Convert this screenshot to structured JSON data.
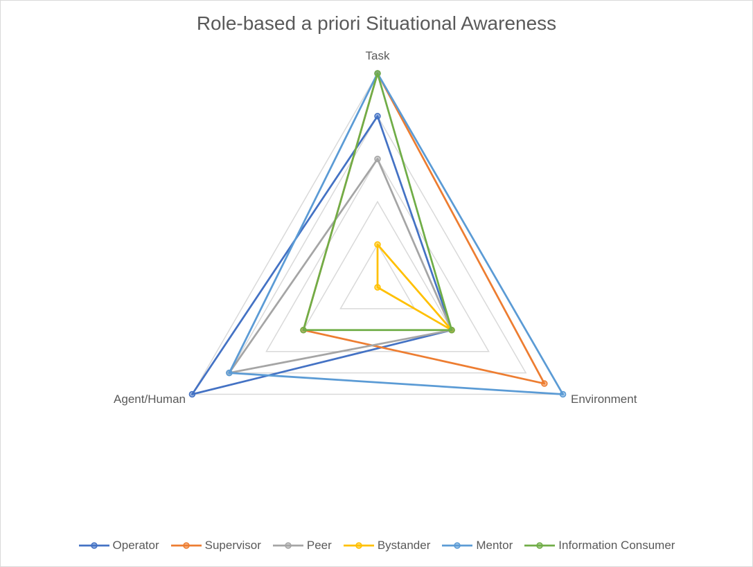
{
  "chart_data": {
    "type": "radar",
    "title": "Role-based a priori Situational Awareness",
    "axes": [
      "Task",
      "Environment",
      "Agent/Human"
    ],
    "rmax": 5,
    "gridlines": [
      1,
      2,
      3,
      4,
      5
    ],
    "grid": true,
    "legend_position": "bottom",
    "series": [
      {
        "name": "Operator",
        "color": "#4472c4",
        "values": [
          4,
          2,
          5
        ]
      },
      {
        "name": "Supervisor",
        "color": "#ed7d31",
        "values": [
          5,
          4.5,
          2
        ]
      },
      {
        "name": "Peer",
        "color": "#a5a5a5",
        "values": [
          3,
          2,
          4
        ]
      },
      {
        "name": "Bystander",
        "color": "#ffc000",
        "values": [
          1,
          2,
          0
        ]
      },
      {
        "name": "Mentor",
        "color": "#5b9bd5",
        "values": [
          5,
          5,
          4
        ]
      },
      {
        "name": "Information Consumer",
        "color": "#70ad47",
        "values": [
          5,
          2,
          2
        ]
      }
    ]
  }
}
